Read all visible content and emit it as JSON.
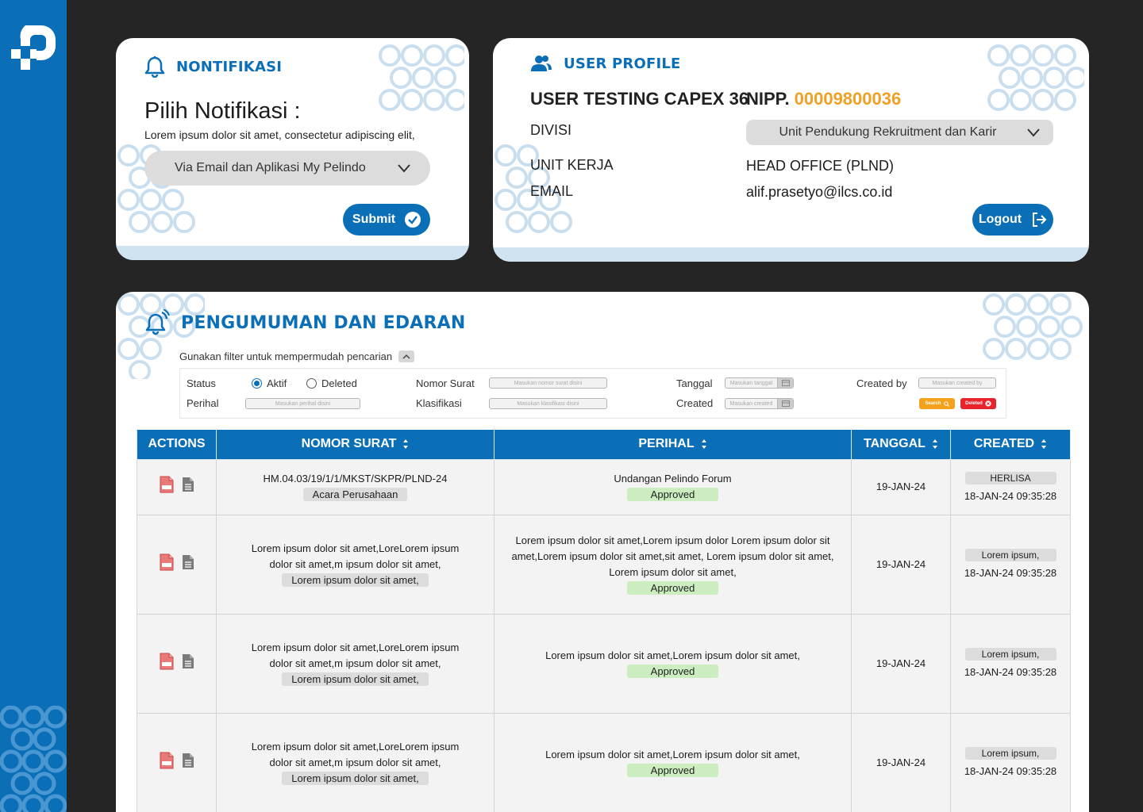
{
  "notifikasi": {
    "title": "NONTIFIKASI",
    "pick_title": "Pilih Notifikasi :",
    "description": "Lorem ipsum dolor sit amet, consectetur adipiscing elit,",
    "selected_option": "Via Email dan Aplikasi My Pelindo",
    "submit_label": "Submit"
  },
  "profile": {
    "title": "USER PROFILE",
    "name": "USER TESTING CAPEX 36",
    "nipp_label": "NIPP.",
    "nipp_value": "00009800036",
    "divisi_label": "DIVISI",
    "divisi_value": "Unit Pendukung Rekruitment dan Karir",
    "unit_label": "UNIT KERJA",
    "unit_value": "HEAD OFFICE (PLND)",
    "email_label": "EMAIL",
    "email_value": "alif.prasetyo@ilcs.co.id",
    "logout_label": "Logout"
  },
  "announce": {
    "title": "PENGUMUMAN DAN EDARAN",
    "filter_hint": "Gunakan filter untuk mempermudah pencarian",
    "filters": {
      "status_label": "Status",
      "status_active": "Aktif",
      "status_deleted": "Deleted",
      "nomor_label": "Nomor Surat",
      "nomor_placeholder": "Masukan nomor surat disini",
      "tanggal_label": "Tanggal",
      "tanggal_placeholder": "Masukan tanggal",
      "createdby_label": "Created by",
      "createdby_placeholder": "Masukan created by",
      "perihal_label": "Perihal",
      "perihal_placeholder": "Masukan perihal disini",
      "klasifikasi_label": "Klasifikasi",
      "klasifikasi_placeholder": "Masukan klasifikasi disini",
      "created_label": "Created",
      "created_placeholder": "Masukan created",
      "search_label": "Search",
      "deleted_label": "Deleted"
    },
    "columns": [
      "ACTIONS",
      "NOMOR SURAT",
      "PERIHAL",
      "TANGGAL",
      "CREATED"
    ],
    "rows": [
      {
        "nomor": "HM.04.03/19/1/1/MKST/SKPR/PLND-24",
        "klasifikasi": "Acara Perusahaan",
        "perihal": "Undangan Pelindo Forum",
        "status": "Approved",
        "tanggal": "19-JAN-24",
        "created_by": "HERLISA",
        "created_at": "18-JAN-24 09:35:28"
      },
      {
        "nomor": "Lorem ipsum dolor sit amet,LoreLorem ipsum dolor sit amet,m ipsum dolor sit amet,",
        "klasifikasi": "Lorem ipsum dolor sit amet,",
        "perihal": "Lorem ipsum dolor sit amet,Lorem ipsum dolor Lorem ipsum dolor sit amet,Lorem ipsum dolor sit amet,sit amet, Lorem ipsum dolor sit amet, Lorem ipsum dolor sit amet,",
        "status": "Approved",
        "tanggal": "19-JAN-24",
        "created_by": "Lorem ipsum,",
        "created_at": "18-JAN-24 09:35:28"
      },
      {
        "nomor": "Lorem ipsum dolor sit amet,LoreLorem ipsum dolor sit amet,m ipsum dolor sit amet,",
        "klasifikasi": "Lorem ipsum dolor sit amet,",
        "perihal": "Lorem ipsum dolor sit amet,Lorem ipsum dolor sit amet,",
        "status": "Approved",
        "tanggal": "19-JAN-24",
        "created_by": "Lorem ipsum,",
        "created_at": "18-JAN-24 09:35:28"
      },
      {
        "nomor": "Lorem ipsum dolor sit amet,LoreLorem ipsum dolor sit amet,m ipsum dolor sit amet,",
        "klasifikasi": "Lorem ipsum dolor sit amet,",
        "perihal": "Lorem ipsum dolor sit amet,Lorem ipsum dolor sit amet,",
        "status": "Approved",
        "tanggal": "19-JAN-24",
        "created_by": "Lorem ipsum,",
        "created_at": "18-JAN-24 09:35:28"
      }
    ]
  },
  "colors": {
    "primary": "#0b6fb8",
    "accent": "#f0a024",
    "approved": "#cbedbf",
    "danger": "#e8232b"
  }
}
